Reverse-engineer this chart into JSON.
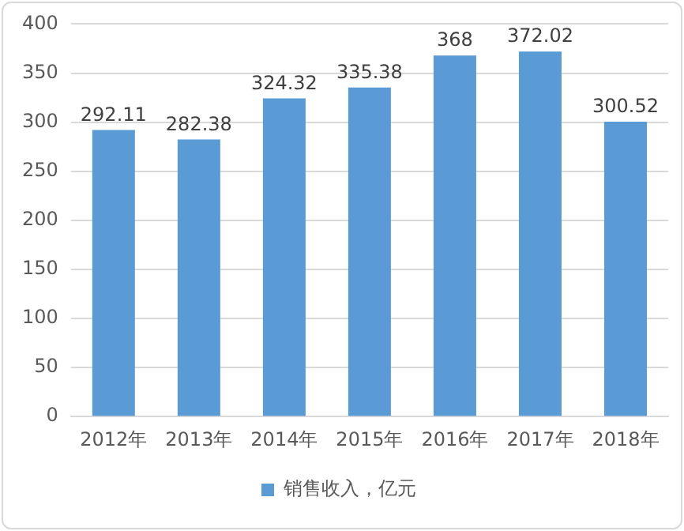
{
  "chart_data": {
    "type": "bar",
    "categories": [
      "2012年",
      "2013年",
      "2014年",
      "2015年",
      "2016年",
      "2017年",
      "2018年"
    ],
    "series": [
      {
        "name": "销售收入，亿元",
        "color": "#5b9bd5",
        "values": [
          292.11,
          282.38,
          324.32,
          335.38,
          368,
          372.02,
          300.52
        ]
      }
    ],
    "ylim": [
      0,
      400
    ],
    "yticks": [
      0,
      50,
      100,
      150,
      200,
      250,
      300,
      350,
      400
    ],
    "grid": "y",
    "legend": "bottom",
    "data_labels": true
  }
}
